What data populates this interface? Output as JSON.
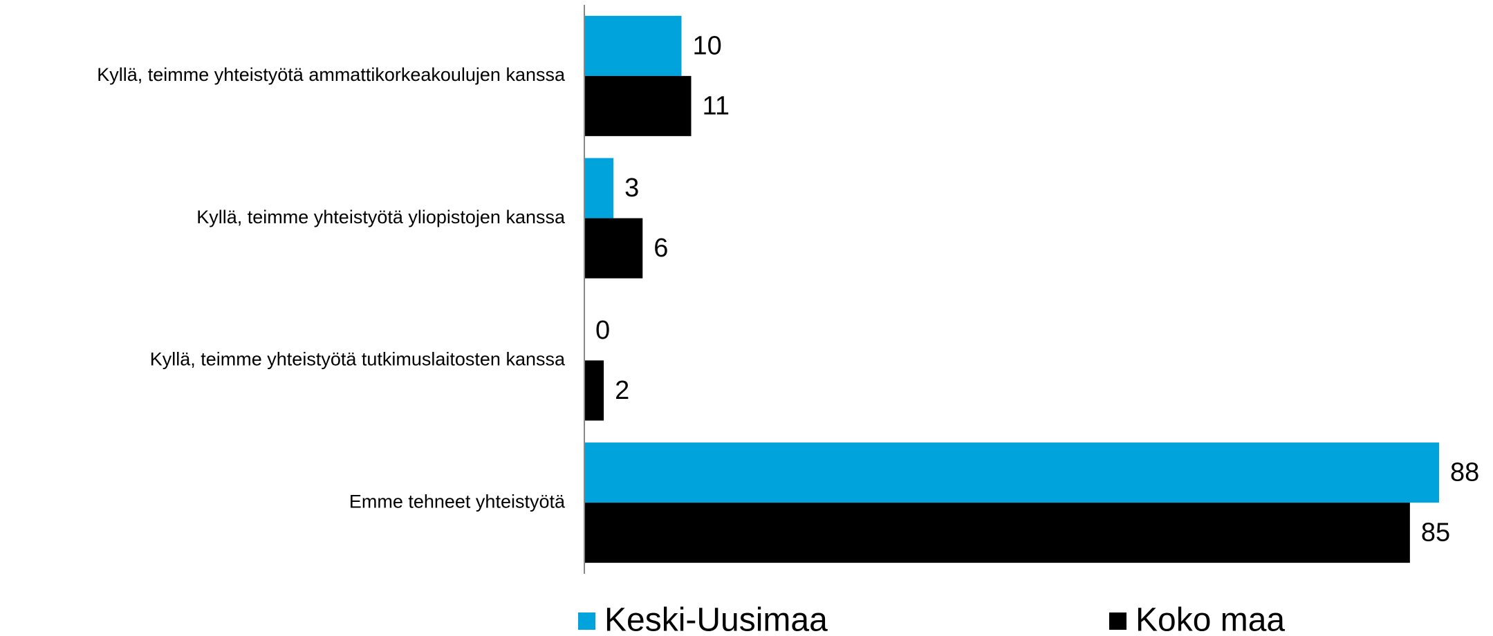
{
  "chart_data": {
    "type": "barh",
    "categories": [
      "Kyllä, teimme yhteistyötä ammattikorkeakoulujen kanssa",
      "Kyllä, teimme yhteistyötä yliopistojen kanssa",
      "Kyllä, teimme yhteistyötä tutkimuslaitosten kanssa",
      "Emme tehneet yhteistyötä"
    ],
    "series": [
      {
        "name": "Keski-Uusimaa",
        "color": "#00a3dc",
        "values": [
          10,
          3,
          0,
          88
        ]
      },
      {
        "name": "Koko maa",
        "color": "#000000",
        "values": [
          11,
          6,
          2,
          85
        ]
      }
    ],
    "legend": "bottom"
  }
}
